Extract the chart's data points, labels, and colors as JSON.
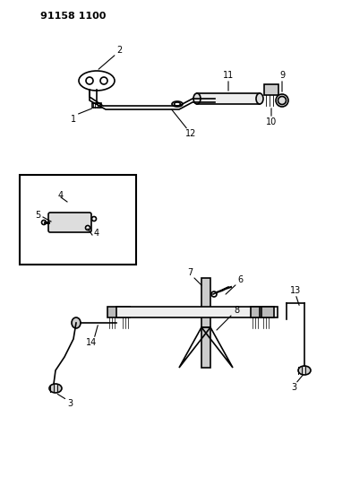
{
  "title": "91158 1100",
  "bg_color": "#ffffff",
  "fig_width": 3.92,
  "fig_height": 5.33,
  "dpi": 100
}
